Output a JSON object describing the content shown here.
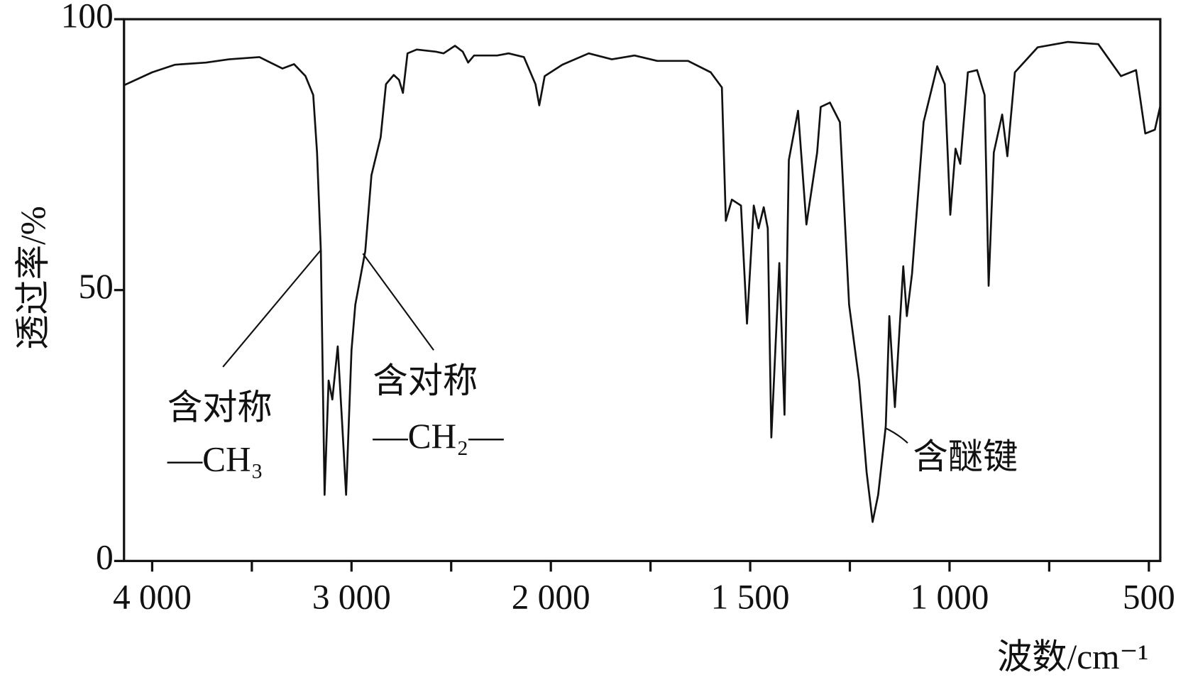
{
  "chart_data": {
    "type": "line",
    "xlabel": "波数/cm⁻¹",
    "ylabel": "透过率/%",
    "xlim": [
      4142,
      472
    ],
    "ylim": [
      0,
      100
    ],
    "xticks": [
      {
        "value": 4000,
        "label": "4 000"
      },
      {
        "value": 3000,
        "label": "3 000"
      },
      {
        "value": 2000,
        "label": "2 000"
      },
      {
        "value": 1500,
        "label": "1 500"
      },
      {
        "value": 1000,
        "label": "1 000"
      },
      500
    ],
    "xminorticks": [
      3500,
      2500,
      1750,
      1250,
      750
    ],
    "yticks": [
      0,
      50,
      100
    ],
    "color": "#111111",
    "annotations": [
      "含对称",
      "—CH₃",
      "含对称",
      "—CH₂—",
      "含醚键"
    ],
    "x": [
      4142,
      4000,
      3885,
      3731,
      3615,
      3462,
      3346,
      3288,
      3231,
      3192,
      3173,
      3154,
      3135,
      3115,
      3096,
      3069,
      3046,
      3027,
      3000,
      2981,
      2931,
      2900,
      2854,
      2827,
      2788,
      2762,
      2742,
      2719,
      2673,
      2577,
      2538,
      2481,
      2442,
      2415,
      2385,
      2269,
      2212,
      2135,
      2077,
      2058,
      2031,
      1971,
      1905,
      1847,
      1790,
      1733,
      1656,
      1599,
      1571,
      1561,
      1546,
      1523,
      1508,
      1491,
      1479,
      1466,
      1456,
      1447,
      1427,
      1414,
      1403,
      1380,
      1359,
      1332,
      1323,
      1300,
      1275,
      1252,
      1227,
      1208,
      1193,
      1179,
      1160,
      1151,
      1137,
      1116,
      1107,
      1094,
      1065,
      1031,
      1012,
      998,
      985,
      973,
      954,
      931,
      912,
      902,
      889,
      868,
      855,
      836,
      779,
      703,
      627,
      570,
      532,
      509,
      485,
      472
    ],
    "values": [
      87.8,
      90.2,
      91.6,
      92,
      92.6,
      93,
      90.9,
      91.7,
      89.5,
      86,
      75.4,
      57.2,
      12.2,
      33.3,
      29.8,
      39.6,
      24.9,
      12.2,
      38.9,
      47.3,
      57.2,
      71.2,
      78.2,
      88,
      89.7,
      88.8,
      86.4,
      93.7,
      94.4,
      94,
      93.7,
      95.1,
      94,
      92,
      93.3,
      93.3,
      93.7,
      93,
      88,
      84.1,
      89.5,
      91.6,
      93.7,
      92.6,
      93.3,
      92.3,
      92.3,
      90.2,
      87.4,
      62.8,
      66.7,
      65.6,
      43.8,
      65.6,
      61.4,
      65.3,
      61.4,
      22.8,
      55,
      27,
      74,
      83.1,
      62.1,
      75.4,
      83.8,
      84.6,
      81,
      47.3,
      33.3,
      16.4,
      7.2,
      12.2,
      24.9,
      45.2,
      28.4,
      54.4,
      45.2,
      53,
      81,
      91.3,
      88,
      63.9,
      76.1,
      73.3,
      90.2,
      90.6,
      86,
      50.8,
      75.4,
      82.4,
      74.7,
      90.2,
      94.8,
      95.8,
      95.4,
      89.5,
      90.6,
      78.9,
      79.6,
      83.8
    ]
  }
}
